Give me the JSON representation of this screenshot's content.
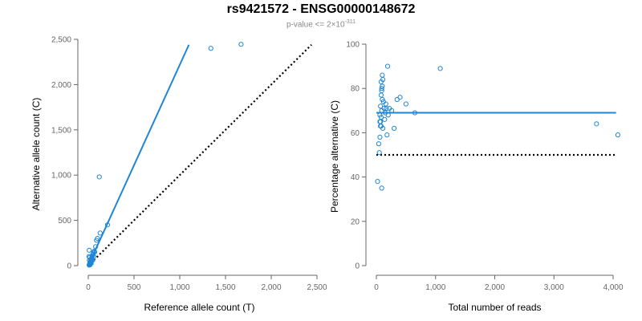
{
  "title": "rs9421572 - ENSG00000148672",
  "subtitle": {
    "prefix": "p-value <= 2×10",
    "exponent": "-311"
  },
  "colors": {
    "points": "#1f86d6",
    "fit_line": "#1f86d6",
    "reference_line": "#000000",
    "axis": "#666666"
  },
  "chart_data": [
    {
      "type": "scatter",
      "id": "left",
      "xlabel": "Reference allele count (T)",
      "ylabel": "Alternative allele count (C)",
      "xlim": [
        0,
        2500
      ],
      "ylim": [
        0,
        2500
      ],
      "xticks": [
        0,
        500,
        1000,
        1500,
        2000,
        2500
      ],
      "xtick_labels": [
        "0",
        "500",
        "1,000",
        "1,500",
        "2,000",
        "2,500"
      ],
      "yticks": [
        0,
        500,
        1000,
        1500,
        2000,
        2500
      ],
      "ytick_labels": [
        "0",
        "500",
        "1,000",
        "1,500",
        "2,000",
        "2,500"
      ],
      "points": [
        [
          10,
          5
        ],
        [
          12,
          15
        ],
        [
          15,
          20
        ],
        [
          18,
          30
        ],
        [
          20,
          10
        ],
        [
          22,
          40
        ],
        [
          25,
          55
        ],
        [
          28,
          35
        ],
        [
          30,
          65
        ],
        [
          32,
          25
        ],
        [
          35,
          80
        ],
        [
          38,
          50
        ],
        [
          40,
          95
        ],
        [
          42,
          70
        ],
        [
          45,
          110
        ],
        [
          48,
          60
        ],
        [
          50,
          125
        ],
        [
          55,
          140
        ],
        [
          60,
          100
        ],
        [
          65,
          160
        ],
        [
          70,
          150
        ],
        [
          8,
          100
        ],
        [
          10,
          170
        ],
        [
          12,
          60
        ],
        [
          15,
          90
        ],
        [
          80,
          210
        ],
        [
          90,
          280
        ],
        [
          100,
          300
        ],
        [
          130,
          360
        ],
        [
          210,
          450
        ],
        [
          120,
          980
        ],
        [
          1340,
          2400
        ],
        [
          1670,
          2445
        ]
      ],
      "fit_line": [
        [
          0,
          0
        ],
        [
          1100,
          2440
        ]
      ],
      "reference_line": [
        [
          0,
          0
        ],
        [
          2440,
          2440
        ]
      ]
    },
    {
      "type": "scatter",
      "id": "right",
      "xlabel": "Total number of reads",
      "ylabel": "Percentage alternative (C)",
      "xlim": [
        0,
        4000
      ],
      "ylim": [
        0,
        100
      ],
      "xticks": [
        0,
        1000,
        2000,
        3000,
        4000
      ],
      "xtick_labels": [
        "0",
        "1,000",
        "2,000",
        "3,000",
        "4,000"
      ],
      "yticks": [
        0,
        20,
        40,
        60,
        80,
        100
      ],
      "ytick_labels": [
        "0",
        "20",
        "40",
        "60",
        "80",
        "100"
      ],
      "points": [
        [
          20,
          38
        ],
        [
          40,
          55
        ],
        [
          50,
          51
        ],
        [
          60,
          58
        ],
        [
          70,
          63
        ],
        [
          60,
          65
        ],
        [
          80,
          67
        ],
        [
          90,
          70
        ],
        [
          70,
          72
        ],
        [
          100,
          75
        ],
        [
          80,
          77
        ],
        [
          90,
          79
        ],
        [
          100,
          81
        ],
        [
          80,
          83
        ],
        [
          110,
          84
        ],
        [
          100,
          86
        ],
        [
          90,
          80
        ],
        [
          120,
          74
        ],
        [
          130,
          71
        ],
        [
          60,
          68
        ],
        [
          70,
          65
        ],
        [
          80,
          63
        ],
        [
          90,
          35
        ],
        [
          110,
          62
        ],
        [
          140,
          66
        ],
        [
          150,
          69
        ],
        [
          160,
          73
        ],
        [
          170,
          71
        ],
        [
          180,
          59
        ],
        [
          190,
          90
        ],
        [
          200,
          68
        ],
        [
          220,
          71
        ],
        [
          260,
          70
        ],
        [
          300,
          62
        ],
        [
          350,
          75
        ],
        [
          400,
          76
        ],
        [
          500,
          73
        ],
        [
          650,
          69
        ],
        [
          1080,
          89
        ],
        [
          3720,
          64
        ],
        [
          4080,
          59
        ]
      ],
      "fit_line": [
        [
          0,
          69
        ],
        [
          4050,
          69
        ]
      ],
      "reference_line": [
        [
          0,
          50
        ],
        [
          4050,
          50
        ]
      ]
    }
  ]
}
